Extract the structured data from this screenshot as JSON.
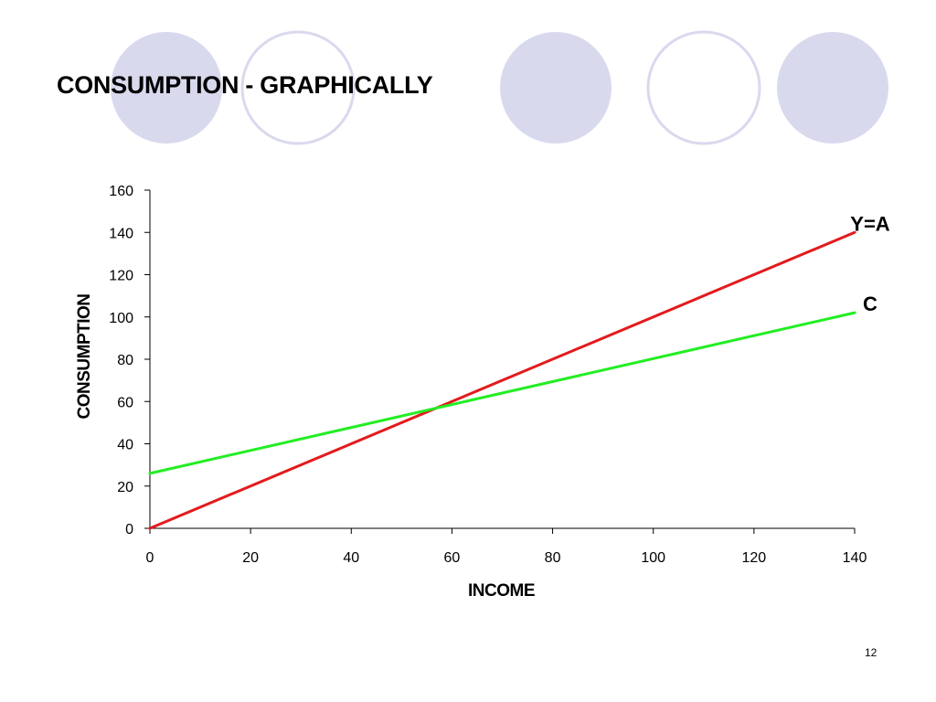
{
  "slide": {
    "title": "CONSUMPTION - GRAPHICALLY",
    "page_number": "12"
  },
  "decor": {
    "circle_fill": "#d9d9ee",
    "circle_outline": "#d9d9ee"
  },
  "chart_data": {
    "type": "line",
    "title": "",
    "xlabel": "INCOME",
    "ylabel": "CONSUMPTION",
    "xlim": [
      0,
      140
    ],
    "ylim": [
      0,
      160
    ],
    "xticks": [
      0,
      20,
      40,
      60,
      80,
      100,
      120,
      140
    ],
    "yticks": [
      0,
      20,
      40,
      60,
      80,
      100,
      120,
      140,
      160
    ],
    "grid": false,
    "legend": "none",
    "series": [
      {
        "name": "Y=A",
        "color": "#e31a1c",
        "x": [
          0,
          140
        ],
        "y": [
          0,
          140
        ]
      },
      {
        "name": "C",
        "color": "#22ee22",
        "x": [
          0,
          140
        ],
        "y": [
          26,
          102
        ]
      }
    ]
  }
}
